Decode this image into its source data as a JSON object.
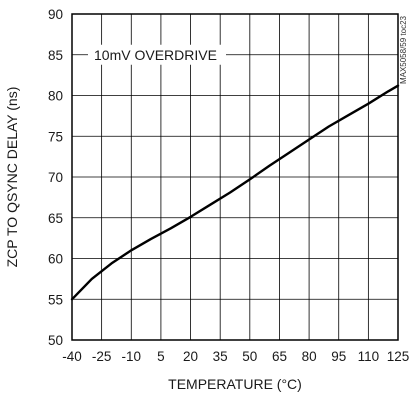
{
  "chart_data": {
    "type": "line",
    "title": "",
    "xlabel": "TEMPERATURE (°C)",
    "ylabel": "ZCP TO QSYNC DELAY (ns)",
    "xlim": [
      -40,
      125
    ],
    "ylim": [
      50,
      90
    ],
    "x_ticks": [
      -40,
      -25,
      -10,
      5,
      20,
      35,
      50,
      65,
      80,
      95,
      110,
      125
    ],
    "y_ticks": [
      50,
      55,
      60,
      65,
      70,
      75,
      80,
      85,
      90
    ],
    "grid": true,
    "legend": "none",
    "annotation": "10mV OVERDRIVE",
    "watermark": "MAX5058/59 toc23",
    "line_color": "#000000",
    "series": [
      {
        "x": [
          -40,
          -30,
          -20,
          -10,
          0,
          10,
          20,
          30,
          40,
          50,
          60,
          70,
          80,
          90,
          100,
          110,
          120,
          125
        ],
        "y": [
          55.0,
          57.5,
          59.4,
          61.0,
          62.4,
          63.7,
          65.1,
          66.6,
          68.1,
          69.7,
          71.4,
          73.0,
          74.6,
          76.2,
          77.6,
          79.0,
          80.5,
          81.2
        ]
      }
    ]
  }
}
